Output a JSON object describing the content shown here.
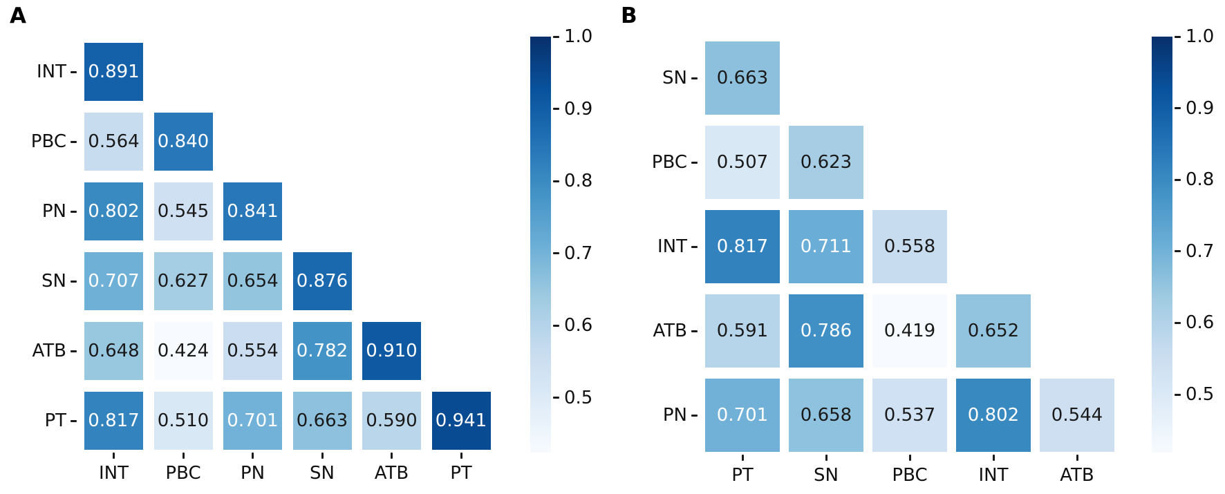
{
  "figure": {
    "background": "#ffffff",
    "axis_text_color": "#111111",
    "annot_text_dark": "#1a1a1a",
    "annot_text_light": "#ffffff"
  },
  "colormap": {
    "name": "Blues",
    "anchors": [
      "#f7fbff",
      "#deebf7",
      "#c6dbef",
      "#9ecae1",
      "#6baed6",
      "#4292c6",
      "#2171b5",
      "#08519c",
      "#08306b"
    ]
  },
  "chart_data": [
    {
      "type": "heatmap",
      "panel_label": "A",
      "triangle": "lower",
      "row_labels": [
        "INT",
        "PBC",
        "PN",
        "SN",
        "ATB",
        "PT"
      ],
      "col_labels": [
        "INT",
        "PBC",
        "PN",
        "SN",
        "ATB",
        "PT"
      ],
      "values": [
        [
          0.891
        ],
        [
          0.564,
          0.84
        ],
        [
          0.802,
          0.545,
          0.841
        ],
        [
          0.707,
          0.627,
          0.654,
          0.876
        ],
        [
          0.648,
          0.424,
          0.554,
          0.782,
          0.91
        ],
        [
          0.817,
          0.51,
          0.701,
          0.663,
          0.59,
          0.941
        ]
      ],
      "vmin": 0.424,
      "vmax": 1.0,
      "colorbar": {
        "ticks": [
          "1.0",
          "0.9",
          "0.8",
          "0.7",
          "0.6",
          "0.5"
        ],
        "tick_values": [
          1.0,
          0.9,
          0.8,
          0.7,
          0.6,
          0.5
        ]
      }
    },
    {
      "type": "heatmap",
      "panel_label": "B",
      "triangle": "lower",
      "row_labels": [
        "SN",
        "PBC",
        "INT",
        "ATB",
        "PN"
      ],
      "col_labels": [
        "PT",
        "SN",
        "PBC",
        "INT",
        "ATB"
      ],
      "values": [
        [
          0.663
        ],
        [
          0.507,
          0.623
        ],
        [
          0.817,
          0.711,
          0.558
        ],
        [
          0.591,
          0.786,
          0.419,
          0.652
        ],
        [
          0.701,
          0.658,
          0.537,
          0.802,
          0.544
        ]
      ],
      "vmin": 0.419,
      "vmax": 1.0,
      "colorbar": {
        "ticks": [
          "1.0",
          "0.9",
          "0.8",
          "0.7",
          "0.6",
          "0.5"
        ],
        "tick_values": [
          1.0,
          0.9,
          0.8,
          0.7,
          0.6,
          0.5
        ]
      }
    }
  ]
}
